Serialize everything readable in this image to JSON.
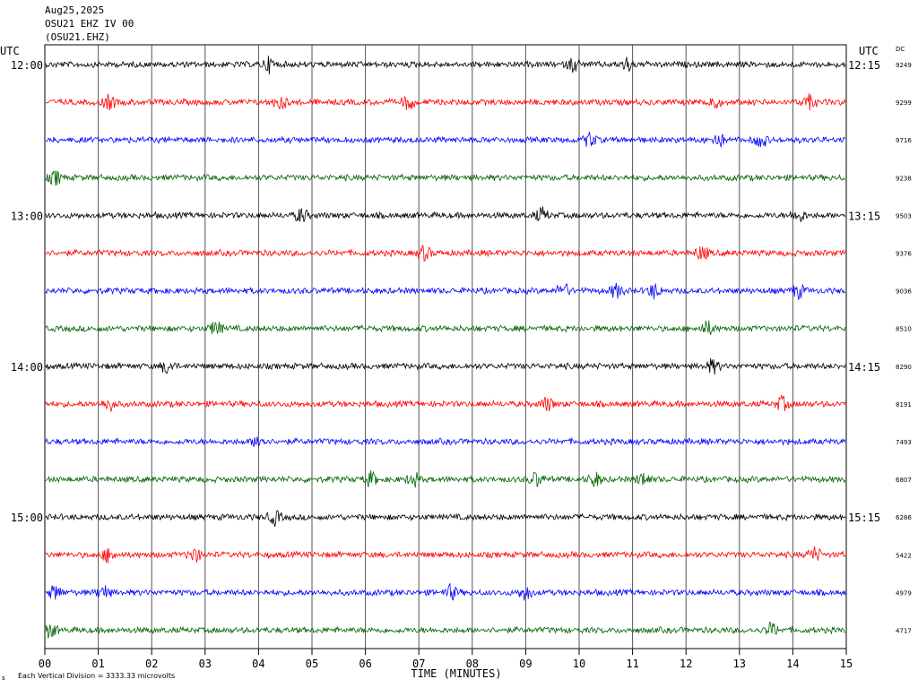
{
  "header": {
    "date": "Aug25,2025",
    "channel": "OSU21 EHZ IV 00",
    "station": "(OSU21.EHZ)"
  },
  "chart_data": {
    "type": "line",
    "description_labels": {
      "left_axis_title": "UTC",
      "right_axis_title": "UTC",
      "dc_title": "DC"
    },
    "xlabel": "TIME (MINUTES)",
    "xlim": [
      0,
      15
    ],
    "x_ticks": [
      "00",
      "01",
      "02",
      "03",
      "04",
      "05",
      "06",
      "07",
      "08",
      "09",
      "10",
      "11",
      "12",
      "13",
      "14",
      "15"
    ],
    "left_hour_labels": [
      "12:00",
      "",
      "",
      "",
      "13:00",
      "",
      "",
      "",
      "14:00",
      "",
      "",
      "",
      "15:00",
      "",
      "",
      ""
    ],
    "right_hour_labels": [
      "12:15",
      "",
      "",
      "",
      "13:15",
      "",
      "",
      "",
      "14:15",
      "",
      "",
      "",
      "15:15",
      "",
      "",
      ""
    ],
    "dc_values": [
      "9249",
      "9299",
      "9716",
      "9238",
      "9503",
      "9376",
      "9036",
      "8510",
      "8290",
      "8191",
      "7493",
      "6807",
      "6286",
      "5422",
      "4979",
      "4717"
    ],
    "trace_colors": [
      "#000000",
      "#ff0000",
      "#0000ff",
      "#006400"
    ],
    "footer_note": "Each Vertical Division = 3333.33 microvolts",
    "footer_mark": "s",
    "events": [
      {
        "trace": 0,
        "minutes": [
          4.2,
          10.9,
          9.9
        ]
      },
      {
        "trace": 1,
        "minutes": [
          1.2,
          4.4,
          6.8,
          12.5,
          14.3
        ]
      },
      {
        "trace": 2,
        "minutes": [
          10.2,
          12.6,
          13.4
        ]
      },
      {
        "trace": 3,
        "minutes": [
          0.2
        ]
      },
      {
        "trace": 4,
        "minutes": [
          4.8,
          9.3,
          14.1
        ]
      },
      {
        "trace": 5,
        "minutes": [
          12.3,
          7.1
        ]
      },
      {
        "trace": 6,
        "minutes": [
          9.7,
          10.7,
          11.4,
          14.1
        ]
      },
      {
        "trace": 7,
        "minutes": [
          3.2,
          12.4
        ]
      },
      {
        "trace": 8,
        "minutes": [
          2.3,
          12.5
        ]
      },
      {
        "trace": 9,
        "minutes": [
          1.2,
          9.4,
          13.8
        ]
      },
      {
        "trace": 10,
        "minutes": [
          4.0
        ]
      },
      {
        "trace": 11,
        "minutes": [
          6.1,
          6.9,
          9.2,
          10.3,
          11.2
        ]
      },
      {
        "trace": 12,
        "minutes": [
          4.3
        ]
      },
      {
        "trace": 13,
        "minutes": [
          1.2,
          2.8,
          14.4
        ]
      },
      {
        "trace": 14,
        "minutes": [
          0.2,
          1.1,
          9.0,
          7.6
        ]
      },
      {
        "trace": 15,
        "minutes": [
          0.1,
          13.6
        ]
      }
    ]
  }
}
